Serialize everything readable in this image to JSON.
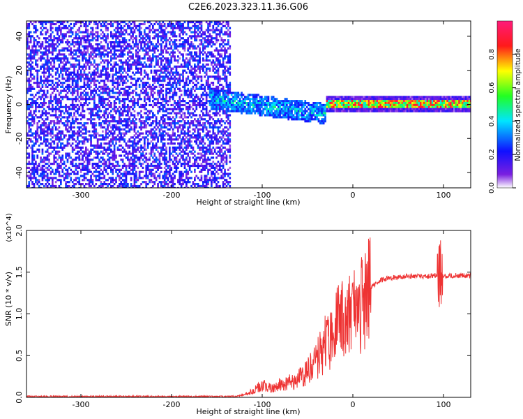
{
  "figure": {
    "title": "C2E6.2023.323.11.36.G06"
  },
  "chart_data": [
    {
      "type": "heatmap",
      "title": "C2E6.2023.323.11.36.G06",
      "xlabel": "Height of straight line (km)",
      "ylabel": "Frequency (Hz)",
      "xlim": [
        -360,
        130
      ],
      "ylim": [
        -49,
        49
      ],
      "xticks": [
        -300,
        -200,
        -100,
        0,
        100
      ],
      "xtick_labels": [
        "-300",
        "-200",
        "-100",
        "0",
        "100"
      ],
      "yticks": [
        -40,
        -20,
        0,
        20,
        40
      ],
      "ytick_labels": [
        "-40",
        "-20",
        "0",
        "20",
        "40"
      ],
      "colorbar": {
        "label": "Normalized spectral amplitude",
        "range": [
          0,
          1
        ],
        "ticks": [
          0.0,
          0.2,
          0.4,
          0.6,
          0.8
        ],
        "tick_labels": [
          "0.0",
          "0.2",
          "0.4",
          "0.6",
          "0.8"
        ],
        "colormap": "rainbow"
      },
      "regions": [
        {
          "x_range": [
            -360,
            -135
          ],
          "freq_range": [
            -49,
            49
          ],
          "amplitude": [
            0.05,
            0.3
          ],
          "description": "broadband noise"
        },
        {
          "x_range": [
            -160,
            -30
          ],
          "center_freq": [
            4,
            -5
          ],
          "halfwidth_hz": 6,
          "amplitude": [
            0.2,
            0.5
          ]
        },
        {
          "x_range": [
            -30,
            130
          ],
          "center_freq": 1,
          "halfwidth_hz": 2,
          "amplitude": [
            0.4,
            0.95
          ]
        }
      ]
    },
    {
      "type": "line",
      "xlabel": "Height of straight line (km)",
      "ylabel": "SNR (10 * v/v)",
      "y_multiplier": "(x10^4)",
      "xlim": [
        -360,
        130
      ],
      "ylim": [
        0,
        2.0
      ],
      "xticks": [
        -300,
        -200,
        -100,
        0,
        100
      ],
      "xtick_labels": [
        "-300",
        "-200",
        "-100",
        "0",
        "100"
      ],
      "yticks": [
        0.0,
        0.5,
        1.0,
        1.5,
        2.0
      ],
      "ytick_labels": [
        "0.0",
        "0.5",
        "1.0",
        "1.5",
        "2.0"
      ],
      "series": [
        {
          "color": "#ee3333",
          "x": [
            -360,
            -300,
            -200,
            -130,
            -120,
            -110,
            -100,
            -90,
            -80,
            -70,
            -60,
            -50,
            -40,
            -30,
            -20,
            -15,
            -10,
            -5,
            0,
            10,
            20,
            30,
            40,
            60,
            80,
            90,
            95,
            97,
            100,
            110,
            130
          ],
          "y": [
            0.01,
            0.01,
            0.01,
            0.01,
            0.03,
            0.08,
            0.14,
            0.12,
            0.16,
            0.18,
            0.22,
            0.32,
            0.45,
            0.65,
            0.8,
            0.95,
            0.9,
            0.95,
            1.0,
            1.15,
            1.32,
            1.4,
            1.43,
            1.45,
            1.45,
            1.46,
            1.45,
            1.5,
            1.45,
            1.46,
            1.46
          ]
        }
      ]
    }
  ]
}
